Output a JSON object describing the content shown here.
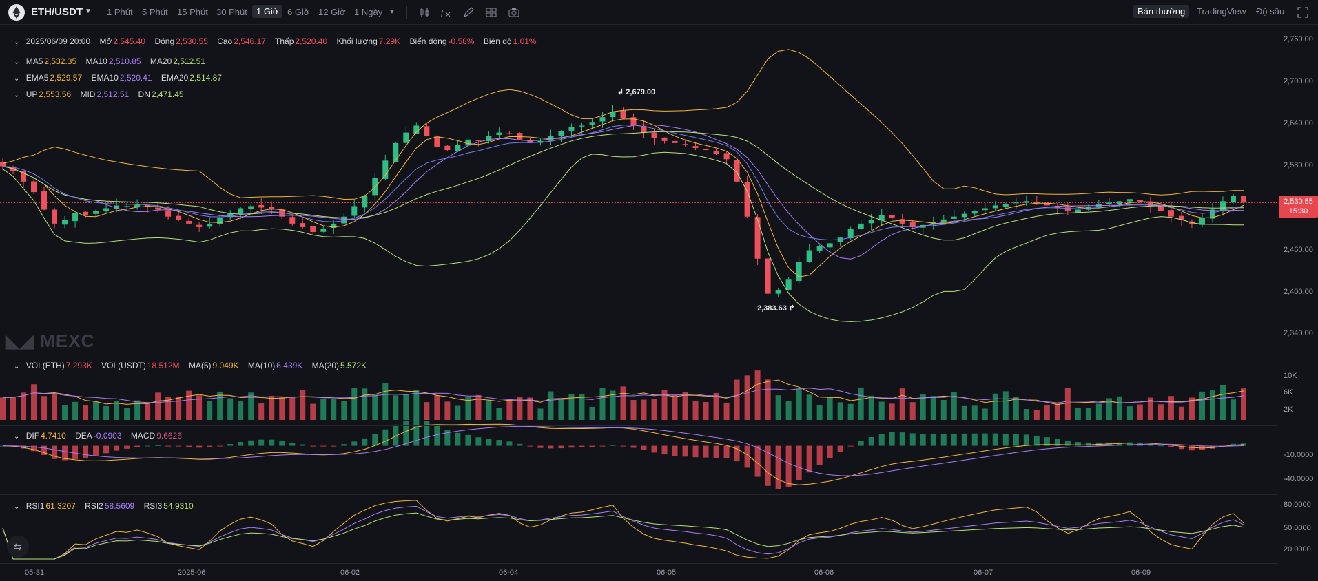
{
  "toolbar": {
    "pair": "ETH/USDT",
    "timeframes": [
      "1 Phút",
      "5 Phút",
      "15 Phút",
      "30 Phút",
      "1 Giờ",
      "6 Giờ",
      "12 Giờ",
      "1 Ngày"
    ],
    "active_timeframe": "1 Giờ",
    "view_modes": [
      "Bản thường",
      "TradingView",
      "Độ sâu"
    ],
    "active_view": "Bản thường",
    "tool_icons": [
      "chevron-down-icon",
      "candle-type-icon",
      "indicator-icon",
      "draw-icon",
      "layout-icon",
      "camera-icon"
    ]
  },
  "ohlc": {
    "date": "2025/06/09 20:00",
    "open_label": "Mở",
    "open": "2,545.40",
    "close_label": "Đóng",
    "close": "2,530.55",
    "high_label": "Cao",
    "high": "2,546.17",
    "low_label": "Thấp",
    "low": "2,520.40",
    "vol_label": "Khối lượng",
    "vol": "7.29K",
    "chg_label": "Biến động",
    "chg": "-0.58%",
    "amp_label": "Biên độ",
    "amp": "1.01%"
  },
  "ma": {
    "ma5_label": "MA5",
    "ma5": "2,532.35",
    "ma10_label": "MA10",
    "ma10": "2,510.85",
    "ma20_label": "MA20",
    "ma20": "2,512.51"
  },
  "ema": {
    "ema5_label": "EMA5",
    "ema5": "2,529.57",
    "ema10_label": "EMA10",
    "ema10": "2,520.41",
    "ema20_label": "EMA20",
    "ema20": "2,514.87"
  },
  "boll": {
    "up_label": "UP",
    "up": "2,553.56",
    "mid_label": "MID",
    "mid": "2,512.51",
    "dn_label": "DN",
    "dn": "2,471.45"
  },
  "vol_legend": {
    "eth_label": "VOL(ETH)",
    "eth": "7.293K",
    "usdt_label": "VOL(USDT)",
    "usdt": "18.512M",
    "ma5_label": "MA(5)",
    "ma5": "9.049K",
    "ma10_label": "MA(10)",
    "ma10": "6.439K",
    "ma20_label": "MA(20)",
    "ma20": "5.572K"
  },
  "macd_legend": {
    "dif_label": "DIF",
    "dif": "4.7410",
    "dea_label": "DEA",
    "dea": "-0.0903",
    "macd_label": "MACD",
    "macd": "9.6626"
  },
  "rsi_legend": {
    "rsi1_label": "RSI1",
    "rsi1": "61.3207",
    "rsi2_label": "RSI2",
    "rsi2": "58.5609",
    "rsi3_label": "RSI3",
    "rsi3": "54.9310"
  },
  "price_axis": [
    "2,760.00",
    "2,700.00",
    "2,640.00",
    "2,580.00",
    "2,460.00",
    "2,400.00",
    "2,340.00"
  ],
  "vol_axis": [
    "10K",
    "6K",
    "2K"
  ],
  "macd_axis": [
    "-10.0000",
    "-40.0000"
  ],
  "rsi_axis": [
    "80.0000",
    "50.0000",
    "20.0000"
  ],
  "last_price": {
    "price": "2,530.55",
    "countdown": "15:30"
  },
  "annotations": {
    "high": "2,679.00",
    "low": "2,383.63"
  },
  "x_axis": [
    "05-31",
    "2025-06",
    "06-02",
    "06-04",
    "06-05",
    "06-06",
    "06-07",
    "06-09"
  ],
  "watermark": "MEXC",
  "colors": {
    "up": "#2ebd85",
    "down": "#f0505c",
    "ma5": "#f2b53a",
    "ma10": "#a67df5",
    "ma20": "#b7e07a",
    "background": "#121318"
  },
  "chart_data": {
    "type": "candlestick",
    "x_ticks": [
      "05-31",
      "2025-06",
      "06-02",
      "06-04",
      "06-05",
      "06-06",
      "06-07",
      "06-09"
    ],
    "ylim": [
      2320,
      2780
    ],
    "close": [
      2582,
      2575,
      2560,
      2545,
      2520,
      2500,
      2505,
      2515,
      2512,
      2518,
      2522,
      2526,
      2525,
      2527,
      2524,
      2520,
      2510,
      2505,
      2500,
      2495,
      2500,
      2508,
      2515,
      2522,
      2525,
      2523,
      2520,
      2510,
      2500,
      2495,
      2488,
      2492,
      2500,
      2510,
      2525,
      2540,
      2565,
      2590,
      2615,
      2630,
      2640,
      2625,
      2610,
      2605,
      2612,
      2620,
      2618,
      2625,
      2630,
      2628,
      2620,
      2615,
      2618,
      2625,
      2632,
      2638,
      2640,
      2645,
      2652,
      2660,
      2650,
      2640,
      2630,
      2622,
      2618,
      2615,
      2612,
      2608,
      2605,
      2600,
      2592,
      2560,
      2510,
      2450,
      2400,
      2405,
      2420,
      2445,
      2462,
      2468,
      2472,
      2480,
      2492,
      2500,
      2505,
      2512,
      2508,
      2500,
      2495,
      2498,
      2502,
      2506,
      2510,
      2514,
      2518,
      2522,
      2526,
      2528,
      2530,
      2532,
      2530,
      2526,
      2522,
      2518,
      2520,
      2524,
      2528,
      2530,
      2532,
      2535,
      2532,
      2525,
      2518,
      2510,
      2505,
      2500,
      2508,
      2520,
      2532,
      2540,
      2530
    ],
    "high_marker": 2679.0,
    "low_marker": 2383.63,
    "vol_ylim": [
      0,
      14000
    ],
    "macd_ylim": [
      -55,
      15
    ],
    "rsi_ylim": [
      0,
      100
    ]
  }
}
